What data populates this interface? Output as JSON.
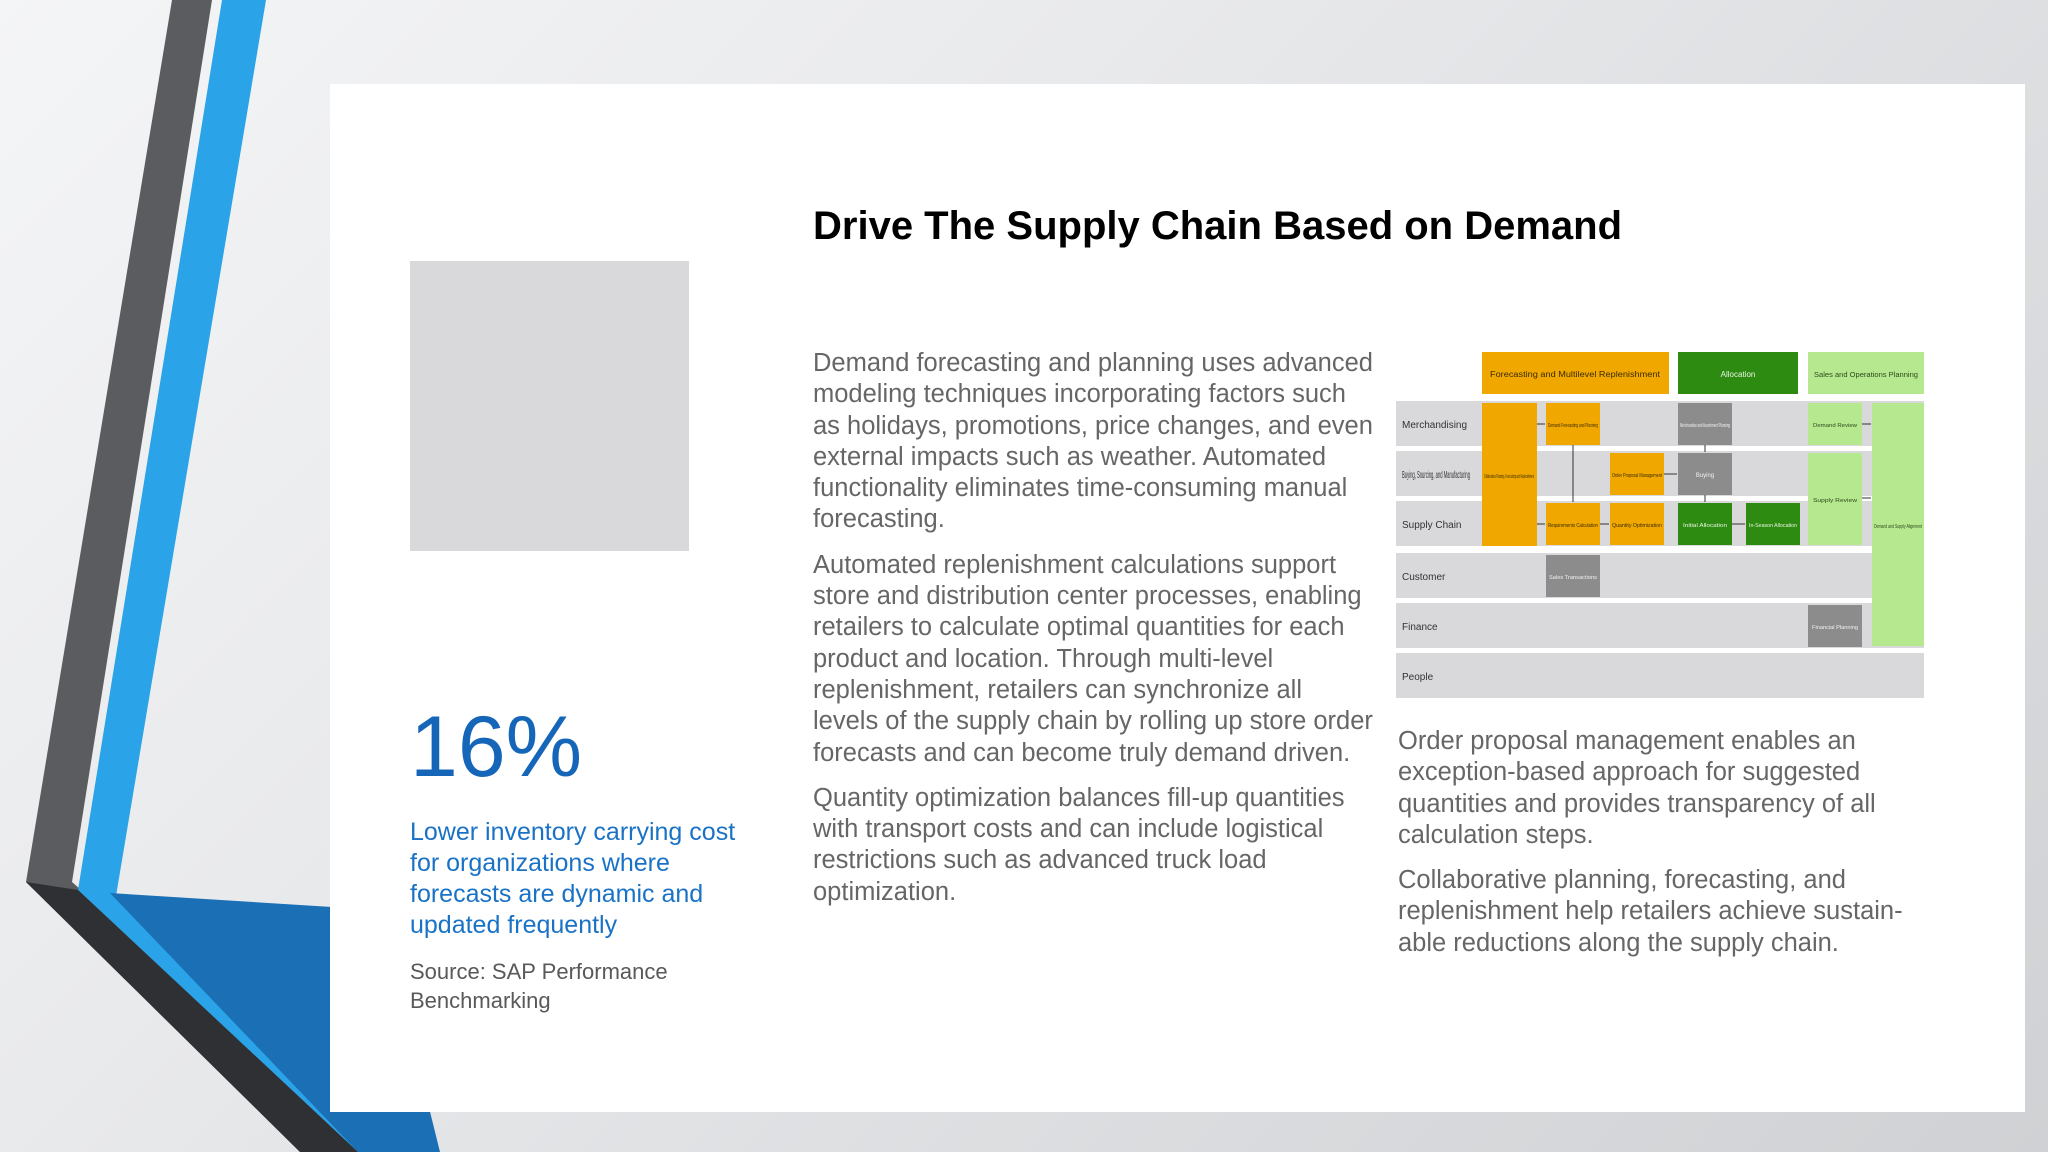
{
  "slide": {
    "title": "Drive The Supply Chain Based on Demand",
    "stat": {
      "value": "16%",
      "caption": "Lower inventory carrying cost for organizations where forecasts are dynamic and updated frequently",
      "source": "Source: SAP Performance Benchmarking"
    },
    "middle_column": [
      "Demand forecasting and planning uses advanced modeling techniques incorporating factors such as holidays, promotions, price changes, and even external impacts such as weather. Automated functionality eliminates time-consuming manual forecasting.",
      "Automated replenishment calculations support store and distribution center processes, enabling retailers to calculate optimal quantities for each product and location. Through multi-level replenishment, retailers can synchronize all levels of the supply chain by rolling up store order forecasts and can become truly demand driven.",
      "Quantity optimization balances fill-up quantities with transport costs and can include logistical restrictions such as advanced truck load optimization."
    ],
    "right_column": [
      "Order proposal management enables an exception-based approach for suggested quantities and provides transparency of all calculation steps.",
      "Collaborative planning, forecasting, and replenishment help retailers achieve sustain-able reductions along the supply chain."
    ]
  },
  "process_diagram": {
    "colors": {
      "orange": "#f0a800",
      "dark_green": "#2e8b12",
      "light_green": "#b5e88f",
      "gray_box": "#8c8c8c",
      "lane": "#d9d9db"
    },
    "header": {
      "forecasting": "Forecasting and Multilevel Replenishment",
      "allocation": "Allocation",
      "sop": "Sales and Operations Planning"
    },
    "lanes": {
      "merchandising": "Merchandising",
      "buying": "Buying, Sourcing, and Manufacturing",
      "supply_chain": "Supply Chain",
      "customer": "Customer",
      "finance": "Finance",
      "people": "People"
    },
    "boxes": {
      "cpfr": "Collaborative Planning, Forecasting and Replenishment",
      "demand_forecasting": "Demand Forecasting and Planning",
      "merch_assortment": "Merchandise and Assortment Planning",
      "order_proposal": "Order Proposal Management",
      "buying": "Buying",
      "requirements": "Requirements Calculation",
      "quantity_opt": "Quantity Optimization",
      "initial_allocation": "Initial Allocation",
      "inseason_allocation": "In-Season Allocation",
      "demand_review": "Demand Review",
      "supply_review": "Supply Review",
      "demand_supply_alignment": "Demand and Supply Alignment",
      "sales_transactions": "Sales Transactions",
      "financial_planning": "Financial Planning"
    }
  }
}
